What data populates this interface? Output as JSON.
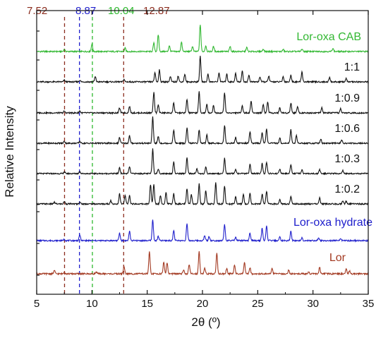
{
  "chart_data": {
    "type": "line",
    "xlabel": "2θ (º)",
    "ylabel": "Relative Intensity",
    "xlim": [
      5,
      35
    ],
    "xticks": [
      5,
      10,
      15,
      20,
      25,
      30,
      35
    ],
    "grid": false,
    "legend": "none",
    "markers": [
      {
        "label": "7.52",
        "x": 7.52,
        "color": "#8b2c1e"
      },
      {
        "label": "8.87",
        "x": 8.87,
        "color": "#1f1fcc"
      },
      {
        "label": "10.04",
        "x": 10.04,
        "color": "#2db82d"
      },
      {
        "label": "12.87",
        "x": 12.87,
        "color": "#8b2c1e"
      }
    ],
    "series": [
      {
        "name": "Lor-oxa CAB",
        "color": "#33b833",
        "peaks": [
          [
            7.5,
            0.12
          ],
          [
            10.0,
            0.45
          ],
          [
            13.0,
            0.2
          ],
          [
            15.6,
            0.5
          ],
          [
            16.0,
            1.0
          ],
          [
            17.0,
            0.35
          ],
          [
            18.1,
            0.55
          ],
          [
            19.1,
            0.3
          ],
          [
            19.8,
            1.6
          ],
          [
            20.3,
            0.35
          ],
          [
            21.0,
            0.3
          ],
          [
            22.5,
            0.3
          ],
          [
            24.0,
            0.25
          ],
          [
            25.5,
            0.15
          ],
          [
            27.3,
            0.12
          ],
          [
            29.0,
            0.15
          ],
          [
            31.8,
            0.2
          ]
        ]
      },
      {
        "name": "1:1",
        "color": "#111111",
        "peaks": [
          [
            7.5,
            0.1
          ],
          [
            8.9,
            0.1
          ],
          [
            10.3,
            0.3
          ],
          [
            12.9,
            0.15
          ],
          [
            15.7,
            0.55
          ],
          [
            16.1,
            0.7
          ],
          [
            17.1,
            0.3
          ],
          [
            17.8,
            0.35
          ],
          [
            18.4,
            0.45
          ],
          [
            19.8,
            1.5
          ],
          [
            20.5,
            0.45
          ],
          [
            21.5,
            0.55
          ],
          [
            22.2,
            0.45
          ],
          [
            23.0,
            0.5
          ],
          [
            23.6,
            0.65
          ],
          [
            24.2,
            0.4
          ],
          [
            25.2,
            0.3
          ],
          [
            26.0,
            0.35
          ],
          [
            27.3,
            0.3
          ],
          [
            28.0,
            0.4
          ],
          [
            29.0,
            0.6
          ],
          [
            31.5,
            0.25
          ],
          [
            33.0,
            0.2
          ]
        ]
      },
      {
        "name": "1:0.9",
        "color": "#111111",
        "peaks": [
          [
            7.5,
            0.1
          ],
          [
            8.9,
            0.12
          ],
          [
            12.5,
            0.3
          ],
          [
            13.4,
            0.4
          ],
          [
            15.6,
            1.2
          ],
          [
            16.0,
            0.5
          ],
          [
            17.4,
            0.6
          ],
          [
            18.6,
            0.8
          ],
          [
            19.7,
            1.25
          ],
          [
            20.4,
            0.5
          ],
          [
            21.0,
            0.45
          ],
          [
            22.0,
            1.2
          ],
          [
            23.6,
            0.45
          ],
          [
            24.4,
            0.7
          ],
          [
            25.5,
            0.5
          ],
          [
            25.9,
            0.65
          ],
          [
            27.0,
            0.3
          ],
          [
            28.0,
            0.6
          ],
          [
            28.6,
            0.4
          ],
          [
            30.8,
            0.3
          ],
          [
            32.5,
            0.25
          ]
        ]
      },
      {
        "name": "1:0.6",
        "color": "#111111",
        "peaks": [
          [
            7.5,
            0.12
          ],
          [
            8.9,
            0.12
          ],
          [
            12.5,
            0.35
          ],
          [
            13.4,
            0.45
          ],
          [
            15.5,
            1.55
          ],
          [
            16.0,
            0.4
          ],
          [
            17.4,
            0.8
          ],
          [
            18.6,
            0.9
          ],
          [
            19.7,
            0.8
          ],
          [
            20.4,
            0.5
          ],
          [
            22.0,
            1.05
          ],
          [
            23.0,
            0.35
          ],
          [
            24.3,
            0.7
          ],
          [
            25.4,
            0.65
          ],
          [
            25.8,
            0.85
          ],
          [
            27.0,
            0.3
          ],
          [
            28.0,
            0.8
          ],
          [
            28.5,
            0.45
          ],
          [
            30.7,
            0.25
          ],
          [
            32.6,
            0.2
          ]
        ]
      },
      {
        "name": "1:0.3",
        "color": "#111111",
        "peaks": [
          [
            7.5,
            0.12
          ],
          [
            8.9,
            0.15
          ],
          [
            12.5,
            0.4
          ],
          [
            13.4,
            0.45
          ],
          [
            15.5,
            1.6
          ],
          [
            16.0,
            0.3
          ],
          [
            17.4,
            0.75
          ],
          [
            18.6,
            1.0
          ],
          [
            19.5,
            0.3
          ],
          [
            20.3,
            0.4
          ],
          [
            22.0,
            1.0
          ],
          [
            23.0,
            0.3
          ],
          [
            24.3,
            0.6
          ],
          [
            25.4,
            0.65
          ],
          [
            25.8,
            0.75
          ],
          [
            27.0,
            0.3
          ],
          [
            28.0,
            0.6
          ],
          [
            29.0,
            0.25
          ],
          [
            30.6,
            0.25
          ],
          [
            32.7,
            0.2
          ]
        ]
      },
      {
        "name": "1:0.2",
        "color": "#111111",
        "peaks": [
          [
            6.6,
            0.1
          ],
          [
            7.5,
            0.15
          ],
          [
            8.9,
            0.12
          ],
          [
            11.7,
            0.2
          ],
          [
            12.5,
            0.6
          ],
          [
            13.0,
            0.5
          ],
          [
            13.4,
            0.5
          ],
          [
            15.3,
            1.15
          ],
          [
            15.6,
            1.15
          ],
          [
            16.2,
            0.5
          ],
          [
            16.7,
            0.7
          ],
          [
            17.4,
            0.6
          ],
          [
            18.6,
            0.9
          ],
          [
            19.0,
            0.55
          ],
          [
            19.7,
            1.2
          ],
          [
            20.3,
            0.8
          ],
          [
            21.2,
            1.25
          ],
          [
            22.0,
            1.05
          ],
          [
            23.0,
            0.45
          ],
          [
            23.7,
            0.55
          ],
          [
            24.3,
            0.65
          ],
          [
            25.4,
            0.6
          ],
          [
            25.8,
            0.75
          ],
          [
            27.0,
            0.25
          ],
          [
            28.0,
            0.45
          ],
          [
            30.6,
            0.35
          ],
          [
            32.7,
            0.2
          ],
          [
            33.0,
            0.15
          ]
        ]
      },
      {
        "name": "Lor-oxa hydrate",
        "color": "#2020cc",
        "peaks": [
          [
            7.5,
            0.08
          ],
          [
            8.9,
            0.35
          ],
          [
            12.5,
            0.45
          ],
          [
            13.4,
            0.55
          ],
          [
            15.5,
            1.25
          ],
          [
            16.0,
            0.25
          ],
          [
            17.4,
            0.6
          ],
          [
            18.6,
            1.0
          ],
          [
            20.2,
            0.3
          ],
          [
            20.6,
            0.25
          ],
          [
            22.0,
            0.95
          ],
          [
            23.0,
            0.2
          ],
          [
            24.3,
            0.45
          ],
          [
            25.4,
            0.75
          ],
          [
            25.8,
            0.85
          ],
          [
            27.0,
            0.2
          ],
          [
            28.0,
            0.55
          ],
          [
            29.0,
            0.2
          ],
          [
            30.5,
            0.15
          ],
          [
            32.5,
            0.15
          ]
        ]
      },
      {
        "name": "Lor",
        "color": "#a33a22",
        "peaks": [
          [
            6.6,
            0.18
          ],
          [
            7.5,
            0.12
          ],
          [
            10.4,
            0.1
          ],
          [
            12.9,
            0.4
          ],
          [
            15.2,
            1.2
          ],
          [
            16.5,
            0.65
          ],
          [
            16.8,
            0.6
          ],
          [
            18.3,
            0.2
          ],
          [
            18.8,
            0.5
          ],
          [
            19.7,
            1.25
          ],
          [
            20.2,
            0.3
          ],
          [
            21.3,
            1.15
          ],
          [
            22.2,
            0.3
          ],
          [
            22.9,
            0.5
          ],
          [
            23.8,
            0.6
          ],
          [
            24.3,
            0.35
          ],
          [
            26.3,
            0.3
          ],
          [
            27.8,
            0.2
          ],
          [
            29.6,
            0.1
          ],
          [
            30.6,
            0.35
          ],
          [
            33.0,
            0.25
          ],
          [
            33.3,
            0.15
          ]
        ]
      }
    ]
  }
}
